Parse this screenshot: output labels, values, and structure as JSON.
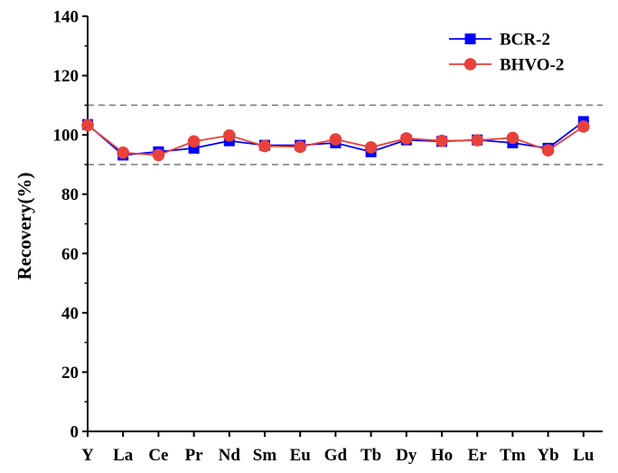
{
  "chart_data": {
    "type": "line",
    "categories": [
      "Y",
      "La",
      "Ce",
      "Pr",
      "Nd",
      "Sm",
      "Eu",
      "Gd",
      "Tb",
      "Dy",
      "Ho",
      "Er",
      "Tm",
      "Yb",
      "Lu"
    ],
    "series": [
      {
        "name": "BCR-2",
        "color": "#0000ff",
        "marker": "square",
        "values": [
          103.5,
          93.2,
          94.3,
          95.5,
          98.0,
          96.5,
          96.5,
          97.3,
          94.3,
          98.3,
          97.8,
          98.3,
          97.3,
          95.5,
          104.5
        ]
      },
      {
        "name": "BHVO-2",
        "color": "#e8413c",
        "marker": "circle",
        "values": [
          103.3,
          94.0,
          93.2,
          97.8,
          99.8,
          96.2,
          96.0,
          98.5,
          95.8,
          98.8,
          98.0,
          98.2,
          99.0,
          94.8,
          102.8
        ]
      }
    ],
    "reference_lines": [
      110,
      90
    ],
    "ylabel": "Recovery(%)",
    "xlabel": "",
    "ylim": [
      0,
      140
    ],
    "yticks": [
      "0",
      "20",
      "40",
      "60",
      "80",
      "100",
      "120",
      "140"
    ],
    "grid": false,
    "legend_position": "top-right"
  }
}
